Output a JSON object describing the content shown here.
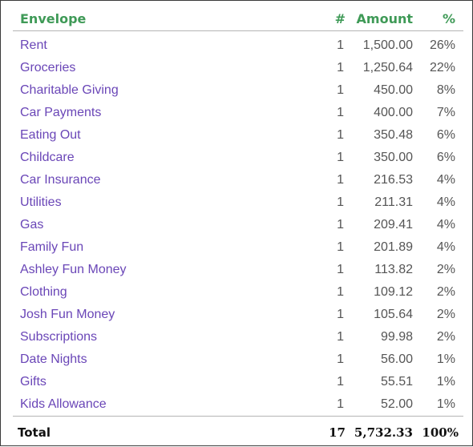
{
  "table": {
    "headers": {
      "envelope": "Envelope",
      "count": "#",
      "amount": "Amount",
      "percent": "%"
    },
    "rows": [
      {
        "name": "Rent",
        "count": "1",
        "amount": "1,500.00",
        "percent": "26%"
      },
      {
        "name": "Groceries",
        "count": "1",
        "amount": "1,250.64",
        "percent": "22%"
      },
      {
        "name": "Charitable Giving",
        "count": "1",
        "amount": "450.00",
        "percent": "8%"
      },
      {
        "name": "Car Payments",
        "count": "1",
        "amount": "400.00",
        "percent": "7%"
      },
      {
        "name": "Eating Out",
        "count": "1",
        "amount": "350.48",
        "percent": "6%"
      },
      {
        "name": "Childcare",
        "count": "1",
        "amount": "350.00",
        "percent": "6%"
      },
      {
        "name": "Car Insurance",
        "count": "1",
        "amount": "216.53",
        "percent": "4%"
      },
      {
        "name": "Utilities",
        "count": "1",
        "amount": "211.31",
        "percent": "4%"
      },
      {
        "name": "Gas",
        "count": "1",
        "amount": "209.41",
        "percent": "4%"
      },
      {
        "name": "Family Fun",
        "count": "1",
        "amount": "201.89",
        "percent": "4%"
      },
      {
        "name": "Ashley Fun Money",
        "count": "1",
        "amount": "113.82",
        "percent": "2%"
      },
      {
        "name": "Clothing",
        "count": "1",
        "amount": "109.12",
        "percent": "2%"
      },
      {
        "name": "Josh Fun Money",
        "count": "1",
        "amount": "105.64",
        "percent": "2%"
      },
      {
        "name": "Subscriptions",
        "count": "1",
        "amount": "99.98",
        "percent": "2%"
      },
      {
        "name": "Date Nights",
        "count": "1",
        "amount": "56.00",
        "percent": "1%"
      },
      {
        "name": "Gifts",
        "count": "1",
        "amount": "55.51",
        "percent": "1%"
      },
      {
        "name": "Kids Allowance",
        "count": "1",
        "amount": "52.00",
        "percent": "1%"
      }
    ],
    "total": {
      "label": "Total",
      "count": "17",
      "amount": "5,732.33",
      "percent": "100%"
    }
  },
  "colors": {
    "header_text": "#3f9a57",
    "envelope_link": "#6a46b7",
    "value_text": "#555555"
  }
}
